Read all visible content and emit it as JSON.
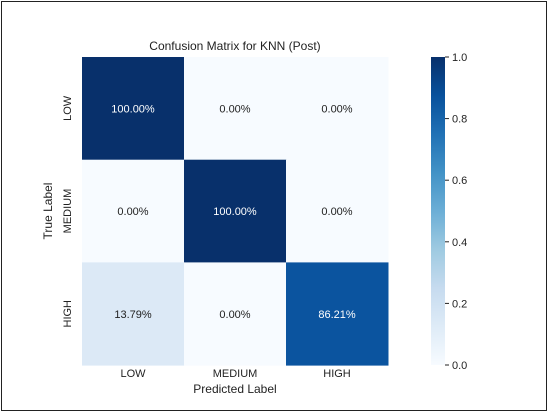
{
  "chart_data": {
    "type": "heatmap",
    "title": "Confusion Matrix for KNN (Post)",
    "xlabel": "Predicted Label",
    "ylabel": "True Label",
    "x_categories": [
      "LOW",
      "MEDIUM",
      "HIGH"
    ],
    "y_categories": [
      "LOW",
      "MEDIUM",
      "HIGH"
    ],
    "values": [
      [
        1.0,
        0.0,
        0.0
      ],
      [
        0.0,
        1.0,
        0.0
      ],
      [
        0.1379,
        0.0,
        0.8621
      ]
    ],
    "annotations": [
      [
        "100.00%",
        "0.00%",
        "0.00%"
      ],
      [
        "0.00%",
        "100.00%",
        "0.00%"
      ],
      [
        "13.79%",
        "0.00%",
        "86.21%"
      ]
    ],
    "colormap": "Blues",
    "colorbar": {
      "range": [
        0.0,
        1.0
      ],
      "ticks": [
        0.0,
        0.2,
        0.4,
        0.6,
        0.8,
        1.0
      ],
      "tick_labels": [
        "0.0",
        "0.2",
        "0.4",
        "0.6",
        "0.8",
        "1.0"
      ]
    }
  }
}
